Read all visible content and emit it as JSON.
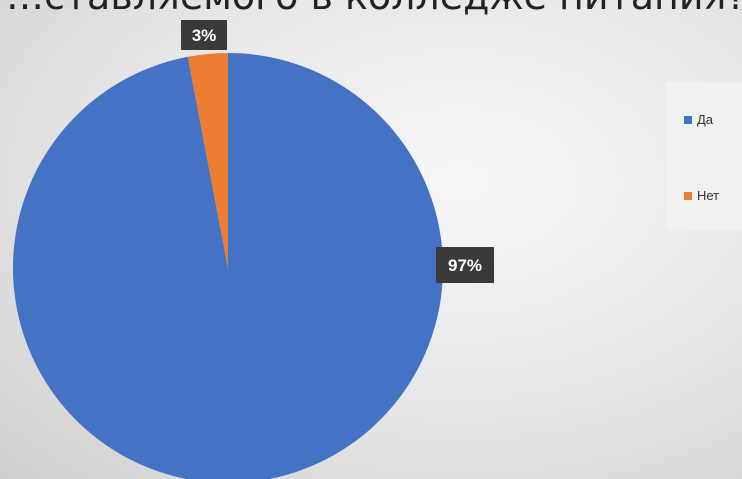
{
  "chart_data": {
    "type": "pie",
    "title": "…ставляемого в колледже питания?",
    "slices": [
      {
        "label": "Да",
        "value": 97,
        "display": "97%",
        "color": "#4472c4"
      },
      {
        "label": "Нет",
        "value": 3,
        "display": "3%",
        "color": "#ed7d31"
      }
    ],
    "legend_position": "right"
  }
}
